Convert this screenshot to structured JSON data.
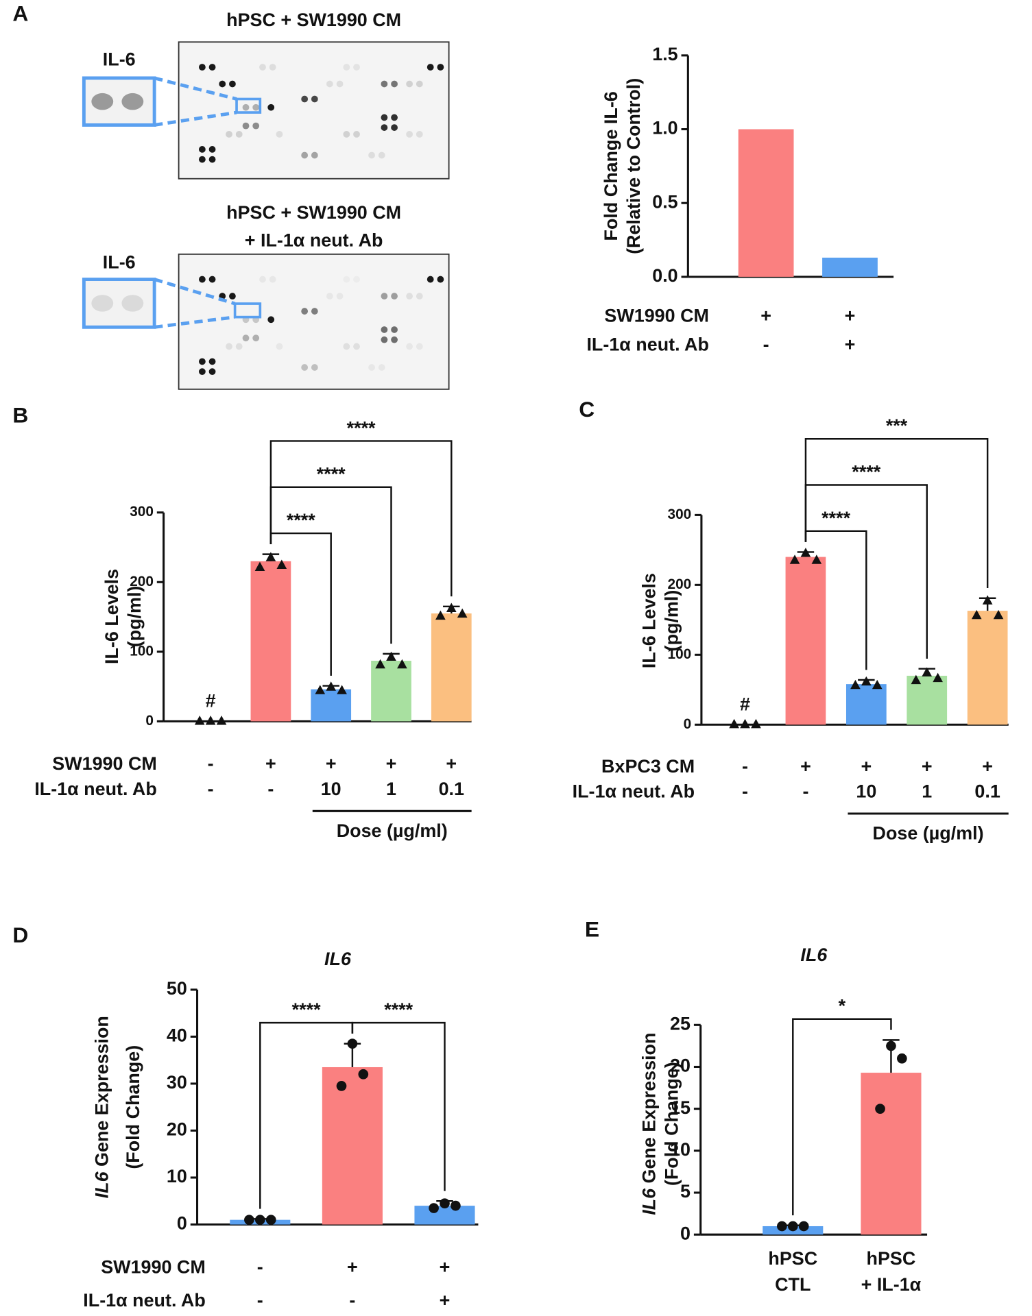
{
  "chart_data": [
    {
      "type": "bar",
      "panel": "A",
      "ylabel": [
        "Fold Change IL-6",
        "(Relative to Control)"
      ],
      "values": [
        1.0,
        0.13
      ],
      "colors": [
        "#fa8080",
        "#5aa0f0"
      ],
      "ylim": [
        0,
        1.5
      ],
      "yticks": [
        {
          "value": 0,
          "label": "0.0"
        },
        0.5,
        {
          "value": 1,
          "label": "1.0"
        },
        1.5
      ],
      "conditions": [
        {
          "label": "SW1990 CM",
          "values": [
            "+",
            "+"
          ]
        },
        {
          "label": "IL-1α neut. Ab",
          "values": [
            "-",
            "+"
          ]
        }
      ]
    },
    {
      "type": "bar",
      "panel": "B",
      "ylabel": [
        "IL-6 Levels",
        "(pg/ml)"
      ],
      "values": [
        0,
        230,
        46,
        87,
        155
      ],
      "errors": [
        0,
        10,
        5,
        10,
        10
      ],
      "points": [
        [
          1,
          1,
          1
        ],
        [
          222,
          236,
          225
        ],
        [
          45,
          50,
          45
        ],
        [
          82,
          93,
          82
        ],
        [
          152,
          163,
          155
        ]
      ],
      "marker": "triangle",
      "colors": [
        "#fa8080",
        "#fa8080",
        "#5aa0f0",
        "#a8e0a0",
        "#fbbf80"
      ],
      "ylim": [
        0,
        300
      ],
      "yticks": [
        0,
        100,
        200,
        300
      ],
      "annotations": [
        {
          "group": 0,
          "text": "#"
        }
      ],
      "brackets": [
        {
          "from": 1,
          "to": 2,
          "label": "****"
        },
        {
          "from": 1,
          "to": 3,
          "label": "****"
        },
        {
          "from": 1,
          "to": 4,
          "label": "****"
        }
      ],
      "conditions": [
        {
          "label": "SW1990 CM",
          "values": [
            "-",
            "+",
            "+",
            "+",
            "+"
          ]
        },
        {
          "label": "IL-1α neut. Ab",
          "values": [
            "-",
            "-",
            "10",
            "1",
            "0.1"
          ]
        }
      ],
      "dose": {
        "label": "Dose (µg/ml)",
        "from": 2,
        "to": 4
      }
    },
    {
      "type": "bar",
      "panel": "C",
      "ylabel": [
        "IL-6 Levels",
        "(pg/ml)"
      ],
      "values": [
        0,
        240,
        58,
        70,
        163
      ],
      "errors": [
        0,
        7,
        6,
        10,
        18
      ],
      "points": [
        [
          1,
          1,
          1
        ],
        [
          236,
          246,
          236
        ],
        [
          57,
          62,
          57
        ],
        [
          64,
          75,
          67
        ],
        [
          157,
          178,
          157
        ]
      ],
      "marker": "triangle",
      "colors": [
        "#fa8080",
        "#fa8080",
        "#5aa0f0",
        "#a8e0a0",
        "#fbbf80"
      ],
      "ylim": [
        0,
        300
      ],
      "yticks": [
        0,
        100,
        200,
        300
      ],
      "annotations": [
        {
          "group": 0,
          "text": "#"
        }
      ],
      "brackets": [
        {
          "from": 1,
          "to": 2,
          "label": "****"
        },
        {
          "from": 1,
          "to": 3,
          "label": "****"
        },
        {
          "from": 1,
          "to": 4,
          "label": "***"
        }
      ],
      "conditions": [
        {
          "label": "BxPC3 CM",
          "values": [
            "-",
            "+",
            "+",
            "+",
            "+"
          ]
        },
        {
          "label": "IL-1α neut. Ab",
          "values": [
            "-",
            "-",
            "10",
            "1",
            "0.1"
          ]
        }
      ],
      "dose": {
        "label": "Dose (µg/ml)",
        "from": 2,
        "to": 4
      }
    },
    {
      "type": "bar",
      "panel": "D",
      "title": "IL6",
      "ylabel_lead": "IL6",
      "ylabel": [
        " Gene Expression",
        "(Fold Change)"
      ],
      "values": [
        1,
        33.5,
        4
      ],
      "errors": [
        0.2,
        5,
        1
      ],
      "points": [
        [
          1,
          1,
          1
        ],
        [
          29.5,
          38.5,
          32
        ],
        [
          3.5,
          4.5,
          4
        ]
      ],
      "marker": "circle",
      "colors": [
        "#5aa0f0",
        "#fa8080",
        "#5aa0f0"
      ],
      "ylim": [
        0,
        50
      ],
      "yticks": [
        0,
        10,
        20,
        30,
        40,
        50
      ],
      "brackets": [
        {
          "from": 0,
          "to": 1,
          "label": "****"
        },
        {
          "from": 1,
          "to": 2,
          "label": "****"
        }
      ],
      "conditions": [
        {
          "label": "SW1990 CM",
          "values": [
            "-",
            "+",
            "+"
          ]
        },
        {
          "label": "IL-1α neut. Ab",
          "values": [
            "-",
            "-",
            "+"
          ]
        }
      ]
    },
    {
      "type": "bar",
      "panel": "E",
      "title": "IL6",
      "ylabel_lead": "IL6",
      "ylabel": [
        " Gene Expression",
        "(Fold Change)"
      ],
      "categories": [
        [
          "hPSC",
          "CTL"
        ],
        [
          "hPSC",
          "+ IL-1α"
        ]
      ],
      "values": [
        1,
        19.3
      ],
      "errors": [
        0.1,
        3.9
      ],
      "points": [
        [
          1,
          1,
          1
        ],
        [
          15,
          22.5,
          21
        ]
      ],
      "marker": "circle",
      "colors": [
        "#5aa0f0",
        "#fa8080"
      ],
      "ylim": [
        0,
        25
      ],
      "yticks": [
        0,
        5,
        10,
        15,
        20,
        25
      ],
      "brackets": [
        {
          "from": 0,
          "to": 1,
          "label": "*"
        }
      ]
    }
  ],
  "blots": [
    {
      "title": [
        "hPSC + SW1990 CM"
      ],
      "inset_label": "IL-6"
    },
    {
      "title": [
        "hPSC + SW1990 CM",
        "+ IL-1α neut. Ab"
      ],
      "inset_label": "IL-6"
    }
  ]
}
